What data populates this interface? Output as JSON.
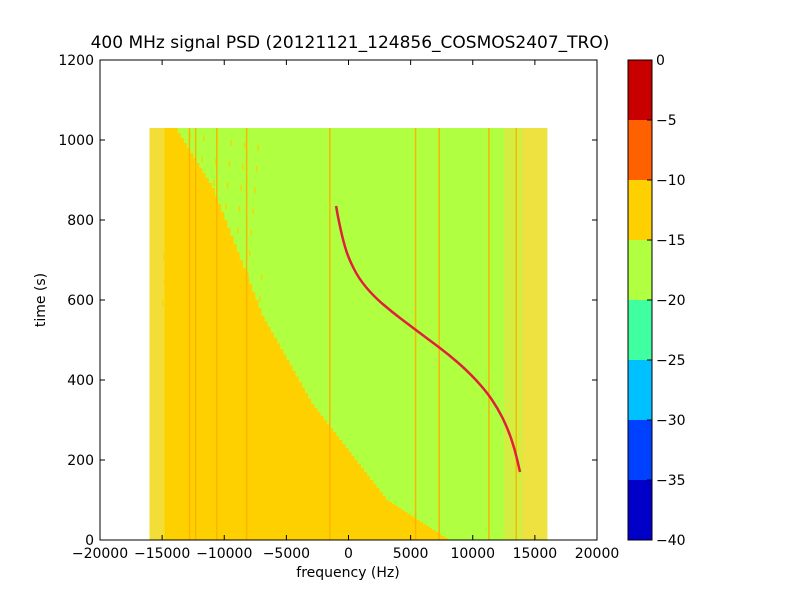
{
  "chart_data": {
    "type": "heatmap",
    "title": "400 MHz signal PSD (20121121_124856_COSMOS2407_TRO)",
    "xlabel": "frequency (Hz)",
    "ylabel": "time (s)",
    "xlim": [
      -20000,
      20000
    ],
    "ylim": [
      0,
      1200
    ],
    "xticks": [
      -20000,
      -15000,
      -10000,
      -5000,
      0,
      5000,
      10000,
      15000,
      20000
    ],
    "xtick_labels": [
      "−20000",
      "−15000",
      "−10000",
      "−5000",
      "0",
      "5000",
      "10000",
      "15000",
      "20000"
    ],
    "yticks": [
      0,
      200,
      400,
      600,
      800,
      1000,
      1200
    ],
    "ytick_labels": [
      "0",
      "200",
      "400",
      "600",
      "800",
      "1000",
      "1200"
    ],
    "data_extent": {
      "freq": [
        -16000,
        16000
      ],
      "time": [
        0,
        1030
      ]
    },
    "colorbar": {
      "min": -40,
      "max": 0,
      "levels": [
        -40,
        -35,
        -30,
        -25,
        -20,
        -15,
        -10,
        -5,
        0
      ],
      "tick_labels": [
        "−40",
        "−35",
        "−30",
        "−25",
        "−20",
        "−15",
        "−10",
        "−5",
        "0"
      ],
      "colors": [
        "#0000c8",
        "#0040ff",
        "#00c0ff",
        "#40ffa0",
        "#b0ff40",
        "#ffd000",
        "#ff6000",
        "#c80000"
      ]
    },
    "background_level_color": "#b0ff40",
    "noise_level_color": "#ffd000",
    "edge_level_color": "#f0e040",
    "signal_color": "#e0203a",
    "signal_trace": {
      "freq": [
        -1000,
        -800,
        -400,
        0,
        800,
        2000,
        3500,
        5000,
        6500,
        8000,
        9500,
        11000,
        12000,
        12800,
        13400,
        13800
      ],
      "time": [
        835,
        800,
        745,
        705,
        655,
        610,
        570,
        535,
        500,
        465,
        425,
        375,
        330,
        280,
        225,
        170
      ]
    },
    "vertical_lines_freq": [
      -12800,
      -12300,
      -10600,
      -8200,
      -1500,
      5400,
      7300,
      11300,
      13500
    ]
  }
}
